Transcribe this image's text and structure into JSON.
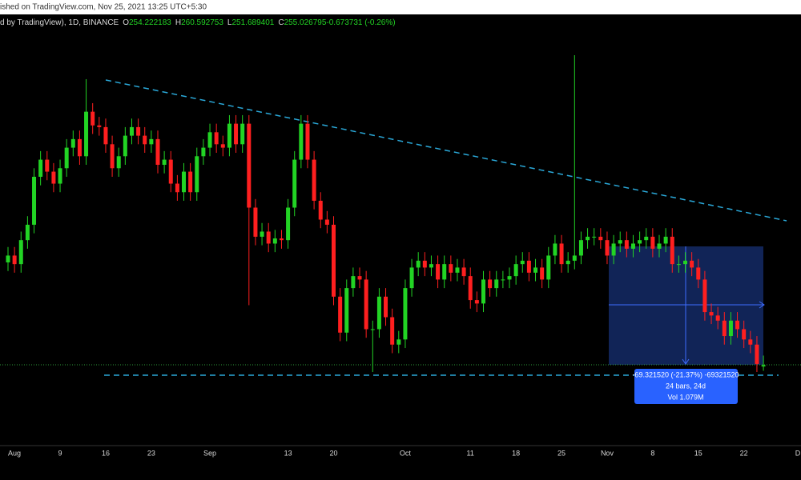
{
  "header": {
    "published": "ished on TradingView.com, Nov 25, 2021 13:25 UTC+5:30",
    "symbol": "d by TradingView), 1D, BINANCE",
    "legend": [
      {
        "label": "O",
        "value": "254.222183"
      },
      {
        "label": "H",
        "value": "260.592753"
      },
      {
        "label": "L",
        "value": "251.689401"
      },
      {
        "label": "C",
        "value": "255.026795"
      },
      {
        "label": "",
        "value": "-0.673731 (-0.26%)"
      }
    ]
  },
  "chart_data": {
    "type": "candlestick",
    "up_color": "#22d424",
    "down_color": "#ff1f1f",
    "open": [
      315,
      319,
      314,
      328,
      337,
      365,
      375,
      368,
      361,
      370,
      382,
      387,
      377,
      403,
      395,
      394,
      384,
      370,
      377,
      389,
      394,
      389,
      384,
      387,
      372,
      375,
      361,
      356,
      368,
      356,
      377,
      382,
      391,
      384,
      382,
      396,
      384,
      396,
      347,
      330,
      333,
      326,
      329,
      328,
      347,
      375,
      396,
      375,
      351,
      340,
      337,
      295,
      274,
      300,
      307,
      305,
      276,
      276,
      295,
      283,
      267,
      270,
      300,
      312,
      316,
      312,
      314,
      305,
      314,
      309,
      312,
      307,
      293,
      291,
      305,
      300,
      305,
      305,
      307,
      314,
      316,
      309,
      312,
      305,
      319,
      326,
      314,
      316,
      319,
      328,
      330,
      330,
      328,
      319,
      326,
      328,
      323,
      326,
      328,
      330,
      323,
      326,
      330,
      314,
      314,
      316,
      312,
      305,
      286,
      284,
      281,
      272,
      281,
      276,
      270,
      267,
      254.222183
    ],
    "high": [
      324,
      324,
      333,
      342,
      370,
      380,
      380,
      373,
      375,
      387,
      392,
      392,
      422,
      408,
      400,
      399,
      389,
      382,
      394,
      399,
      399,
      394,
      392,
      392,
      380,
      380,
      366,
      373,
      373,
      382,
      387,
      396,
      396,
      389,
      401,
      401,
      401,
      401,
      352,
      338,
      338,
      334,
      334,
      352,
      380,
      401,
      401,
      380,
      356,
      345,
      342,
      300,
      305,
      312,
      312,
      310,
      281,
      300,
      300,
      288,
      275,
      305,
      317,
      321,
      321,
      319,
      319,
      319,
      319,
      317,
      317,
      312,
      298,
      310,
      310,
      310,
      310,
      312,
      319,
      321,
      321,
      317,
      317,
      324,
      331,
      331,
      321,
      436,
      333,
      335,
      335,
      335,
      333,
      331,
      333,
      333,
      331,
      333,
      335,
      335,
      331,
      335,
      335,
      319,
      321,
      321,
      317,
      310,
      291,
      289,
      286,
      286,
      286,
      281,
      275,
      272,
      260.592753
    ],
    "low": [
      310,
      309,
      309,
      323,
      332,
      360,
      363,
      356,
      356,
      365,
      377,
      372,
      372,
      390,
      389,
      379,
      365,
      365,
      372,
      384,
      384,
      379,
      379,
      367,
      367,
      356,
      351,
      351,
      351,
      351,
      372,
      377,
      379,
      377,
      377,
      379,
      379,
      290,
      325,
      325,
      321,
      321,
      323,
      323,
      342,
      370,
      370,
      346,
      335,
      332,
      290,
      269,
      269,
      295,
      300,
      271,
      251,
      271,
      278,
      262,
      262,
      265,
      295,
      307,
      307,
      307,
      300,
      300,
      304,
      304,
      302,
      288,
      286,
      286,
      295,
      295,
      300,
      300,
      302,
      309,
      304,
      304,
      300,
      300,
      314,
      309,
      309,
      311,
      314,
      323,
      325,
      323,
      314,
      314,
      321,
      318,
      318,
      321,
      323,
      318,
      318,
      321,
      309,
      309,
      309,
      307,
      300,
      281,
      279,
      276,
      267,
      267,
      271,
      265,
      262,
      251,
      251.689401
    ],
    "close": [
      319,
      314,
      328,
      337,
      365,
      375,
      368,
      361,
      370,
      382,
      387,
      377,
      403,
      395,
      394,
      384,
      370,
      377,
      389,
      394,
      389,
      384,
      387,
      372,
      375,
      361,
      356,
      368,
      356,
      377,
      382,
      391,
      384,
      382,
      396,
      384,
      396,
      347,
      330,
      333,
      326,
      329,
      328,
      347,
      375,
      396,
      375,
      351,
      340,
      337,
      295,
      274,
      300,
      307,
      305,
      276,
      276,
      295,
      283,
      267,
      270,
      300,
      312,
      316,
      312,
      314,
      305,
      314,
      309,
      312,
      307,
      293,
      291,
      305,
      300,
      305,
      305,
      307,
      314,
      316,
      309,
      312,
      305,
      319,
      326,
      314,
      316,
      319,
      328,
      330,
      330,
      328,
      319,
      326,
      328,
      323,
      326,
      328,
      330,
      323,
      326,
      330,
      314,
      314,
      316,
      312,
      305,
      286,
      284,
      281,
      272,
      281,
      276,
      270,
      267,
      255.7,
      255.026795
    ],
    "x_labels": [
      "Aug",
      "9",
      "16",
      "23",
      "Sep",
      "13",
      "20",
      "Oct",
      "11",
      "18",
      "25",
      "Nov",
      "8",
      "15",
      "22",
      "D"
    ],
    "measure": {
      "change": "-69.321520 (-21.37%) -69321520",
      "bars": "24 bars, 24d",
      "volume": "Vol 1.079M"
    }
  }
}
